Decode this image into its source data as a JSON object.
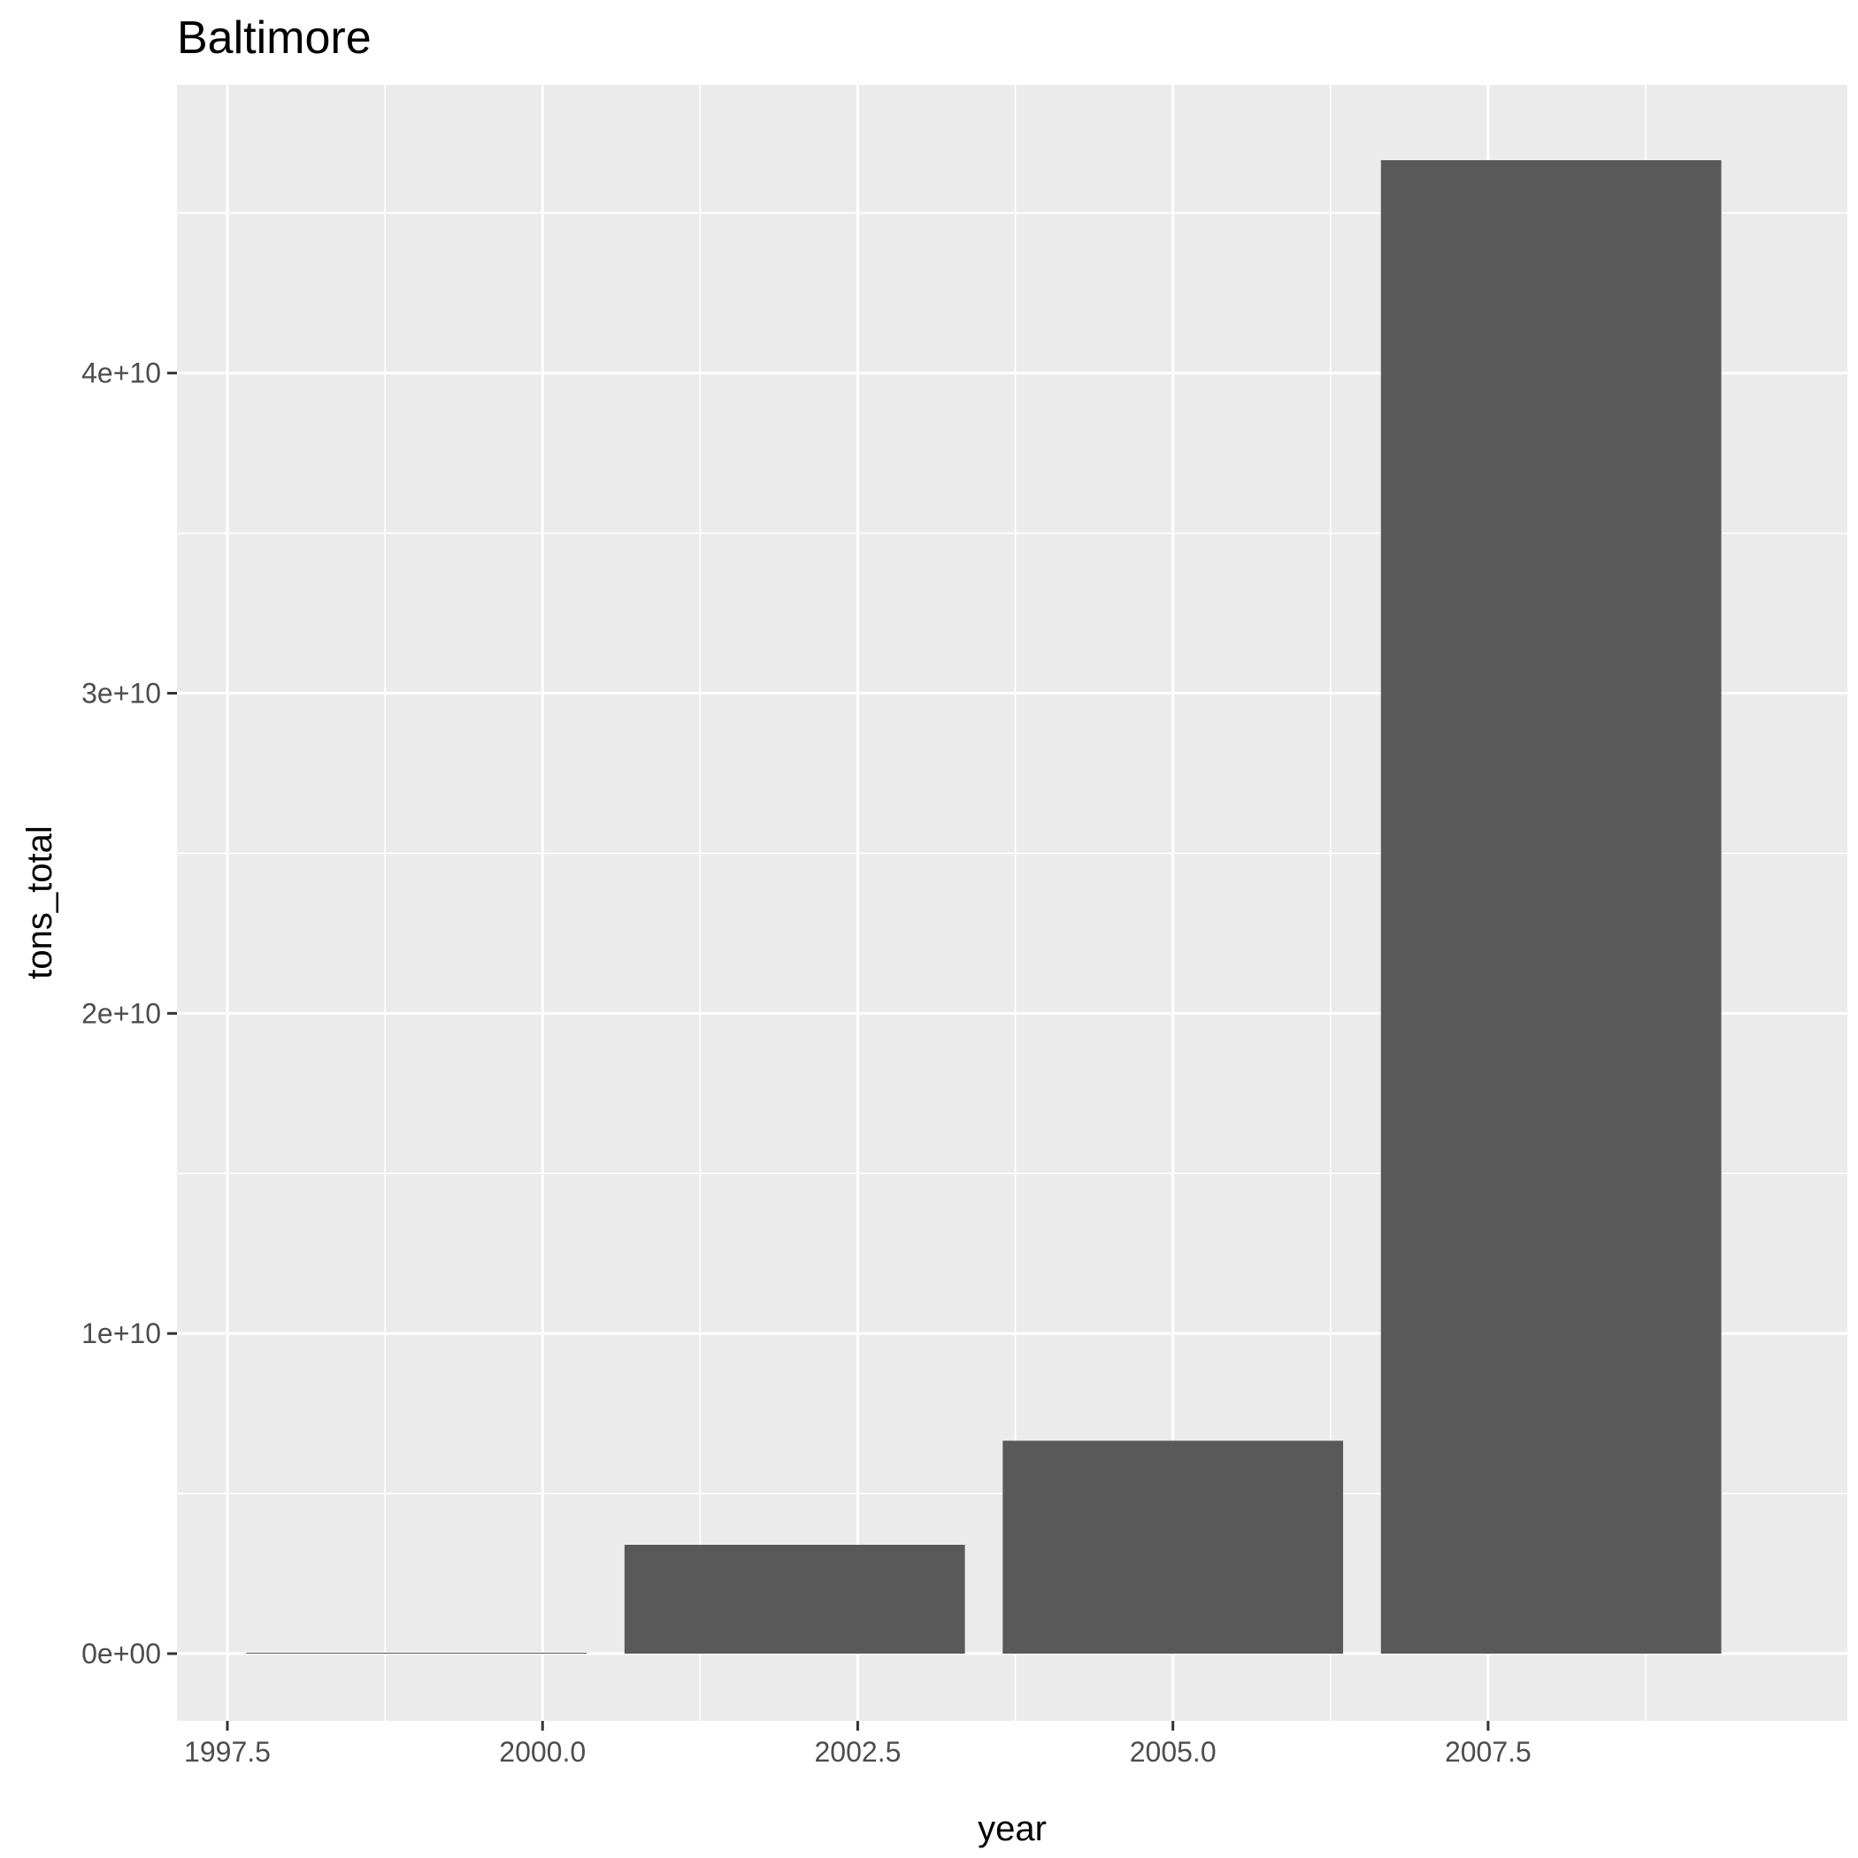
{
  "chart_data": {
    "type": "bar",
    "title": "Baltimore",
    "xlabel": "year",
    "ylabel": "tons_total",
    "x": [
      1999,
      2002,
      2005,
      2008
    ],
    "values": [
      0,
      3400000000,
      6650000000,
      46650000000
    ],
    "bar_width": 2.7,
    "xlim": [
      1997.1,
      2010.35
    ],
    "ylim": [
      -2100000000,
      49000000000
    ],
    "x_ticks": [
      1997.5,
      2000.0,
      2002.5,
      2005.0,
      2007.5
    ],
    "x_tick_labels": [
      "1997.5",
      "2000.0",
      "2002.5",
      "2005.0",
      "2007.5"
    ],
    "y_ticks": [
      0,
      10000000000,
      20000000000,
      30000000000,
      40000000000
    ],
    "y_tick_labels": [
      "0e+00",
      "1e+10",
      "2e+10",
      "3e+10",
      "4e+10"
    ],
    "grid": true,
    "legend": "none",
    "colors": {
      "panel_background": "#ebebeb",
      "grid": "#ffffff",
      "bar": "#595959",
      "tick": "#333333",
      "tick_label": "#4d4d4d"
    }
  }
}
